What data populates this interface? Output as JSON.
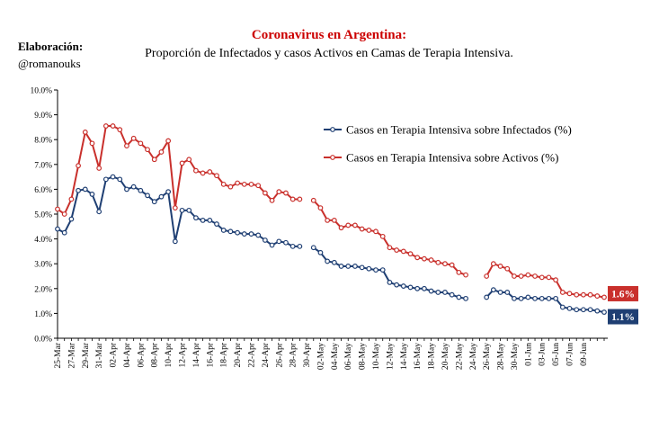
{
  "colors": {
    "series1": "#1f3f73",
    "series2": "#c9302c",
    "title": "#cc0000"
  },
  "chart_data": {
    "type": "line",
    "title": "Coronavirus en Argentina:",
    "subtitle": "Proporción de Infectados  y casos Activos en Camas de Terapia Intensiva.",
    "credit": {
      "label": "Elaboración:",
      "handle": "@romanouks"
    },
    "ylim": [
      0,
      10
    ],
    "y_ticks": [
      "0.0%",
      "1.0%",
      "2.0%",
      "3.0%",
      "4.0%",
      "5.0%",
      "6.0%",
      "7.0%",
      "8.0%",
      "9.0%",
      "10.0%"
    ],
    "x_tick_labels": [
      "25-Mar",
      "27-Mar",
      "29-Mar",
      "31-Mar",
      "02-Apr",
      "04-Apr",
      "06-Apr",
      "08-Apr",
      "10-Apr",
      "12-Apr",
      "14-Apr",
      "16-Apr",
      "18-Apr",
      "20-Apr",
      "22-Apr",
      "24-Apr",
      "26-Apr",
      "28-Apr",
      "30-Apr",
      "02-May",
      "04-May",
      "06-May",
      "08-May",
      "10-May",
      "12-May",
      "14-May",
      "16-May",
      "18-May",
      "20-May",
      "22-May",
      "24-May",
      "26-May",
      "28-May",
      "30-May",
      "01-Jun",
      "03-Jun",
      "05-Jun",
      "07-Jun",
      "09-Jun"
    ],
    "x_start": "2020-03-25",
    "legend_position": "top-right",
    "series": [
      {
        "name": "Casos en Terapia Intensiva sobre Infectados (%)",
        "end_label": "1.1%",
        "values": [
          4.4,
          4.25,
          4.8,
          5.95,
          6.0,
          5.8,
          5.1,
          6.4,
          6.5,
          6.4,
          6.0,
          6.1,
          5.95,
          5.75,
          5.5,
          5.7,
          5.9,
          3.9,
          5.15,
          5.15,
          4.85,
          4.75,
          4.75,
          4.6,
          4.35,
          4.3,
          4.25,
          4.2,
          4.2,
          4.15,
          3.95,
          3.75,
          3.9,
          3.85,
          3.7,
          3.7,
          null,
          3.65,
          3.45,
          3.1,
          3.05,
          2.9,
          2.9,
          2.9,
          2.85,
          2.8,
          2.75,
          2.75,
          2.25,
          2.15,
          2.1,
          2.05,
          2.0,
          2.0,
          1.9,
          1.85,
          1.85,
          1.75,
          1.65,
          1.6,
          null,
          null,
          1.65,
          1.95,
          1.85,
          1.85,
          1.6,
          1.6,
          1.65,
          1.6,
          1.6,
          1.6,
          1.6,
          1.25,
          1.2,
          1.15,
          1.15,
          1.15,
          1.1,
          1.05
        ]
      },
      {
        "name": "Casos en Terapia Intensiva sobre Activos (%)",
        "end_label": "1.6%",
        "values": [
          5.2,
          5.0,
          5.6,
          6.95,
          8.3,
          7.85,
          6.85,
          8.55,
          8.55,
          8.4,
          7.75,
          8.05,
          7.85,
          7.6,
          7.2,
          7.5,
          7.95,
          5.25,
          7.05,
          7.2,
          6.75,
          6.65,
          6.7,
          6.55,
          6.2,
          6.1,
          6.25,
          6.2,
          6.2,
          6.15,
          5.85,
          5.55,
          5.9,
          5.85,
          5.6,
          5.6,
          null,
          5.55,
          5.25,
          4.75,
          4.75,
          4.45,
          4.55,
          4.55,
          4.4,
          4.35,
          4.3,
          4.1,
          3.65,
          3.55,
          3.5,
          3.4,
          3.25,
          3.2,
          3.15,
          3.05,
          3.0,
          2.95,
          2.65,
          2.55,
          null,
          null,
          2.5,
          3.0,
          2.9,
          2.8,
          2.5,
          2.5,
          2.55,
          2.5,
          2.45,
          2.45,
          2.35,
          1.85,
          1.8,
          1.75,
          1.75,
          1.75,
          1.7,
          1.65
        ]
      }
    ]
  }
}
